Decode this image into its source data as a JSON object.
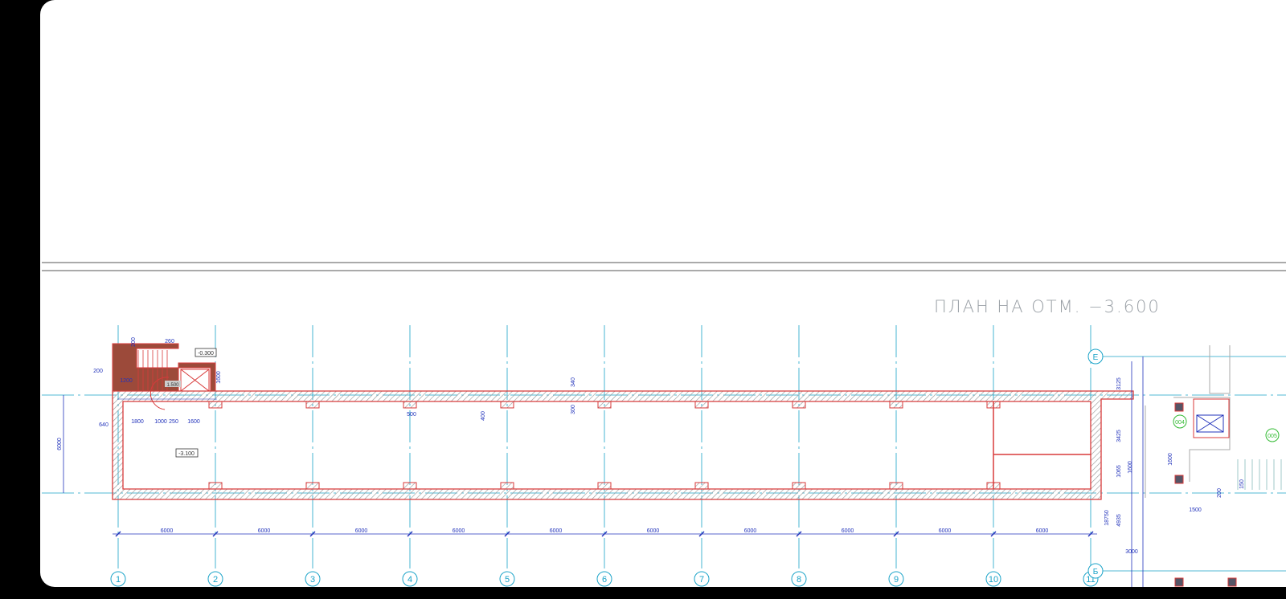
{
  "drawing": {
    "title": "ПЛАН НА ОТМ. −3.600",
    "axes_numbers": [
      "1",
      "2",
      "3",
      "4",
      "5",
      "6",
      "7",
      "8",
      "9",
      "10",
      "11"
    ],
    "axes_letters_right": [
      "Е",
      "Б"
    ],
    "span_dimensions": [
      "6000",
      "6000",
      "6000",
      "6000",
      "6000",
      "6000",
      "6000",
      "6000",
      "6000",
      "6000"
    ],
    "left_dimension": "6000",
    "stair_dimensions": {
      "d200_top": "200",
      "d260": "260",
      "d200_left": "200",
      "d1200": "1200",
      "d1600_v": "1600",
      "d640": "640",
      "d1800": "1800",
      "d1000": "1000",
      "d250": "250",
      "d1600": "1600"
    },
    "level_marks": {
      "top": "-0.300",
      "floor": "-3.100",
      "door": "1.500"
    },
    "wall_dimensions": {
      "d500": "500",
      "d400": "400",
      "d340": "340",
      "d300": "300"
    },
    "right_dimensions": {
      "d3125": "3125",
      "d3425": "3425",
      "d1065": "1065",
      "d1600a": "1600",
      "d18750": "18750",
      "d4935": "4935",
      "d3000": "3000",
      "d1600b": "1600",
      "d1500": "1500",
      "d150": "150",
      "d200": "200"
    },
    "room_tags": [
      "004",
      "005"
    ],
    "colors": {
      "wall": "#d83a3a",
      "hatch": "#999999",
      "dimension": "#2233bb",
      "axis": "#1aa3c8",
      "tag": "#33bb33"
    }
  }
}
